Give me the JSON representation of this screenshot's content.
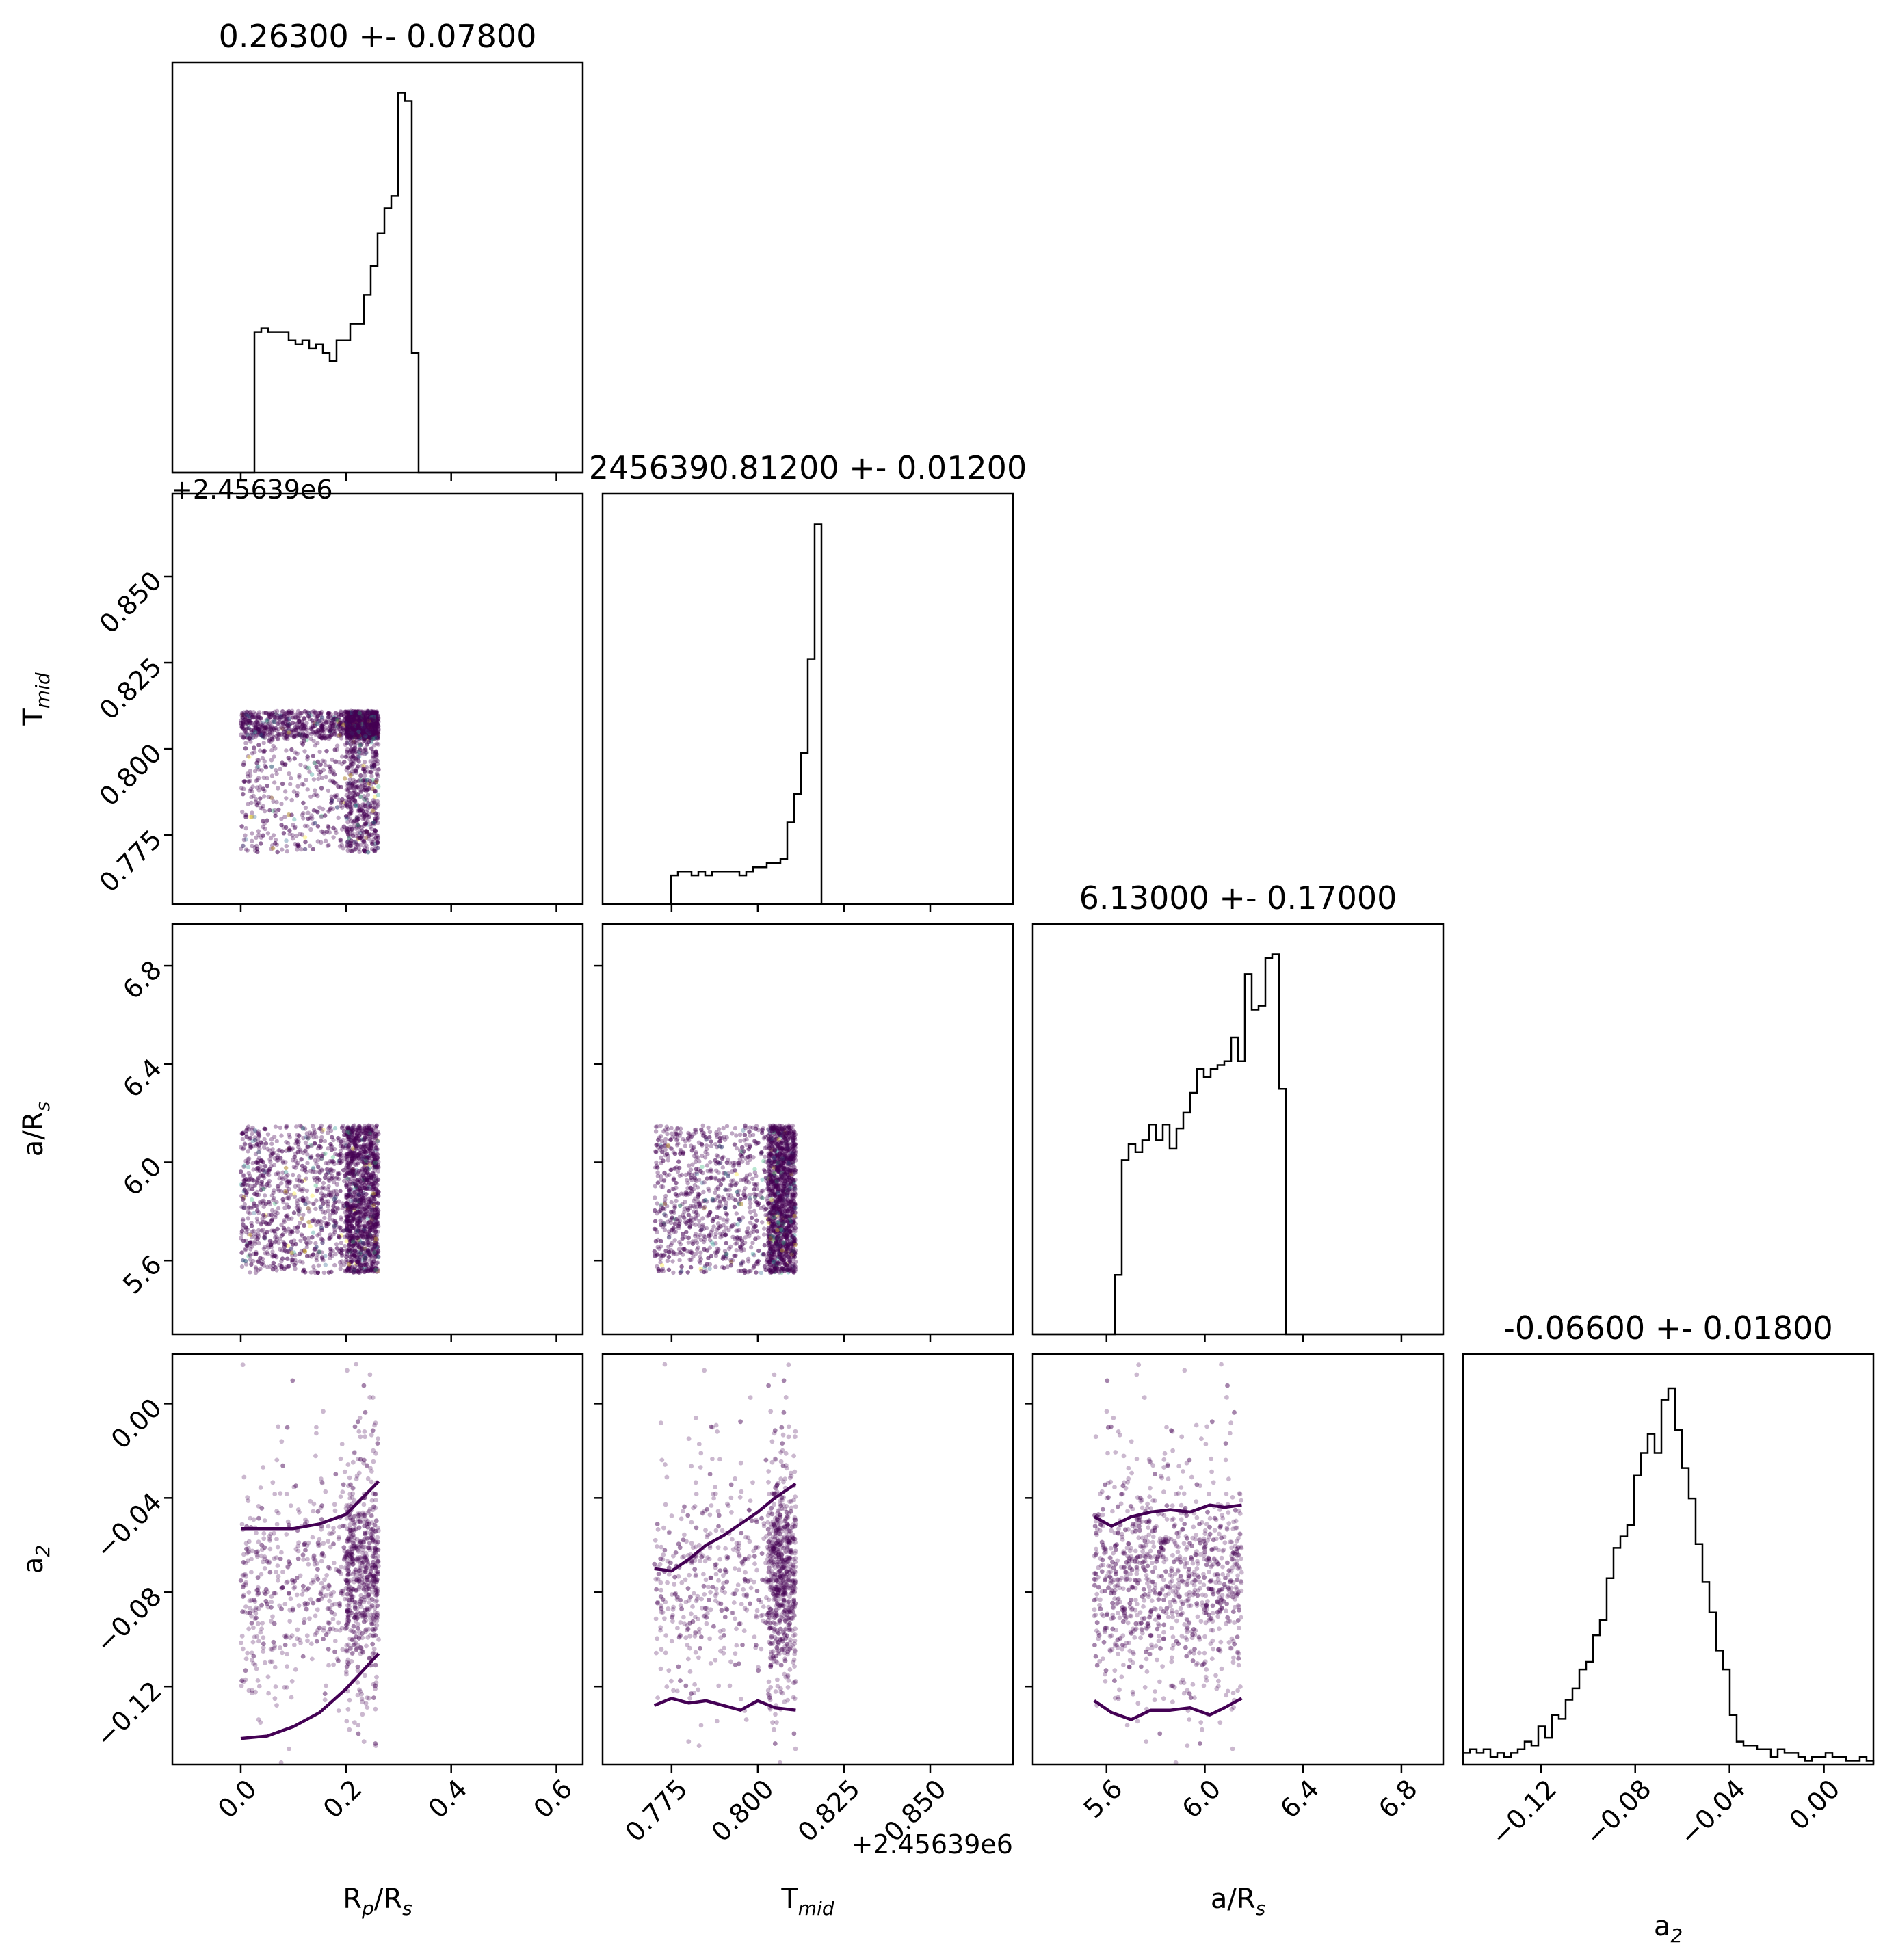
{
  "chart_data": {
    "type": "corner",
    "params": [
      {
        "key": "rp_rs",
        "label_main": "R",
        "label_sub": "p",
        "label_tail": "/R",
        "label_tail_sub": "s",
        "title": "0.26300 +- 0.07800",
        "lim": [
          -0.13,
          0.65
        ],
        "ticks": [
          0.0,
          0.2,
          0.4,
          0.6
        ],
        "tick_labels": [
          "0.0",
          "0.2",
          "0.4",
          "0.6"
        ],
        "offset": "",
        "hist": [
          0,
          0,
          0,
          0,
          0,
          0,
          0,
          0,
          0,
          0,
          0,
          0,
          0.34,
          0.35,
          0.34,
          0.34,
          0.34,
          0.32,
          0.31,
          0.32,
          0.3,
          0.31,
          0.29,
          0.27,
          0.32,
          0.32,
          0.36,
          0.36,
          0.43,
          0.5,
          0.58,
          0.64,
          0.67,
          0.92,
          0.9,
          0.29,
          0,
          0,
          0,
          0,
          0,
          0,
          0,
          0,
          0,
          0,
          0,
          0,
          0,
          0,
          0,
          0,
          0,
          0,
          0,
          0,
          0,
          0,
          0,
          0
        ],
        "hist_max": 0.92
      },
      {
        "key": "t_mid",
        "label_main": "T",
        "label_sub": "mid",
        "label_tail": "",
        "label_tail_sub": "",
        "title": "2456390.81200 +- 0.01200",
        "lim": [
          0.755,
          0.874
        ],
        "ticks": [
          0.775,
          0.8,
          0.825,
          0.85
        ],
        "tick_labels": [
          "0.775",
          "0.800",
          "0.825",
          "0.850"
        ],
        "offset": "+2.45639e6",
        "hist": [
          0,
          0,
          0,
          0,
          0,
          0,
          0,
          0,
          0,
          0,
          0.07,
          0.08,
          0.08,
          0.07,
          0.08,
          0.07,
          0.08,
          0.08,
          0.08,
          0.08,
          0.07,
          0.08,
          0.09,
          0.09,
          0.1,
          0.1,
          0.11,
          0.2,
          0.27,
          0.37,
          0.6,
          0.93,
          0,
          0,
          0,
          0,
          0,
          0,
          0,
          0,
          0,
          0,
          0,
          0,
          0,
          0,
          0,
          0,
          0,
          0,
          0,
          0,
          0,
          0,
          0,
          0,
          0,
          0,
          0,
          0
        ],
        "hist_max": 0.93
      },
      {
        "key": "a_rs",
        "label_main": "a/R",
        "label_sub": "s",
        "label_tail": "",
        "label_tail_sub": "",
        "title": "6.13000 +- 0.17000",
        "lim": [
          5.3,
          6.97
        ],
        "ticks": [
          5.6,
          6.0,
          6.4,
          6.8
        ],
        "tick_labels": [
          "5.6",
          "6.0",
          "6.4",
          "6.8"
        ],
        "offset": "",
        "hist": [
          0,
          0,
          0,
          0,
          0,
          0,
          0,
          0,
          0,
          0,
          0,
          0,
          0.15,
          0.44,
          0.48,
          0.46,
          0.49,
          0.53,
          0.49,
          0.53,
          0.47,
          0.52,
          0.56,
          0.61,
          0.67,
          0.65,
          0.67,
          0.68,
          0.69,
          0.75,
          0.69,
          0.91,
          0.82,
          0.83,
          0.95,
          0.96,
          0.62,
          0,
          0,
          0,
          0,
          0,
          0,
          0,
          0,
          0,
          0,
          0,
          0,
          0,
          0,
          0,
          0,
          0,
          0,
          0,
          0,
          0,
          0,
          0
        ],
        "hist_max": 0.96
      },
      {
        "key": "a2",
        "label_main": "a",
        "label_sub": "2",
        "label_tail": "",
        "label_tail_sub": "",
        "title": "-0.06600 +- 0.01800",
        "lim": [
          -0.153,
          0.021
        ],
        "ticks": [
          -0.12,
          -0.08,
          -0.04,
          0.0
        ],
        "tick_labels": [
          "−0.12",
          "−0.08",
          "−0.04",
          "0.00"
        ],
        "offset": "",
        "hist": [
          0.03,
          0.04,
          0.03,
          0.04,
          0.02,
          0.03,
          0.02,
          0.03,
          0.04,
          0.06,
          0.05,
          0.1,
          0.07,
          0.13,
          0.12,
          0.17,
          0.2,
          0.25,
          0.27,
          0.34,
          0.38,
          0.49,
          0.57,
          0.6,
          0.63,
          0.76,
          0.82,
          0.87,
          0.82,
          0.96,
          0.99,
          0.88,
          0.78,
          0.7,
          0.58,
          0.48,
          0.4,
          0.3,
          0.25,
          0.13,
          0.06,
          0.05,
          0.05,
          0.04,
          0.04,
          0.02,
          0.04,
          0.03,
          0.03,
          0.02,
          0.01,
          0.02,
          0.02,
          0.03,
          0.02,
          0.02,
          0.01,
          0.01,
          0.02,
          0.01
        ],
        "hist_max": 1.0
      }
    ],
    "samples": {
      "rp_rs": {
        "min": 0.0,
        "max": 0.262,
        "dense_from": 0.2
      },
      "t_mid": {
        "min": 0.77,
        "max": 0.811,
        "dense_from": 0.803
      },
      "a_rs": {
        "min": 5.55,
        "max": 6.15
      },
      "a2": {
        "center": -0.078,
        "spread": 0.022,
        "range": [
          -0.153,
          0.021
        ]
      }
    },
    "contours": {
      "rp_rs": {
        "x": [
          0.0,
          0.05,
          0.1,
          0.15,
          0.2,
          0.262
        ],
        "upper": [
          -0.053,
          -0.053,
          -0.053,
          -0.051,
          -0.047,
          -0.033
        ],
        "lower": [
          -0.142,
          -0.141,
          -0.137,
          -0.131,
          -0.121,
          -0.106
        ]
      },
      "t_mid": {
        "x": [
          0.77,
          0.775,
          0.78,
          0.785,
          0.79,
          0.795,
          0.8,
          0.805,
          0.811
        ],
        "upper": [
          -0.07,
          -0.071,
          -0.066,
          -0.06,
          -0.056,
          -0.051,
          -0.046,
          -0.04,
          -0.034
        ],
        "lower": [
          -0.128,
          -0.125,
          -0.127,
          -0.126,
          -0.128,
          -0.13,
          -0.126,
          -0.129,
          -0.13
        ]
      },
      "a_rs": {
        "x": [
          5.55,
          5.62,
          5.7,
          5.78,
          5.86,
          5.94,
          6.02,
          6.08,
          6.15
        ],
        "upper": [
          -0.048,
          -0.052,
          -0.048,
          -0.046,
          -0.045,
          -0.046,
          -0.043,
          -0.044,
          -0.043
        ],
        "lower": [
          -0.126,
          -0.131,
          -0.134,
          -0.13,
          -0.13,
          -0.129,
          -0.132,
          -0.129,
          -0.125
        ]
      }
    },
    "colors": {
      "scatter_main": "#440154",
      "scatter_accents": [
        "#31688e",
        "#35b779",
        "#fde725",
        "#21918c"
      ],
      "contour": "#440154",
      "axes": "#000000",
      "background": "#ffffff"
    }
  }
}
